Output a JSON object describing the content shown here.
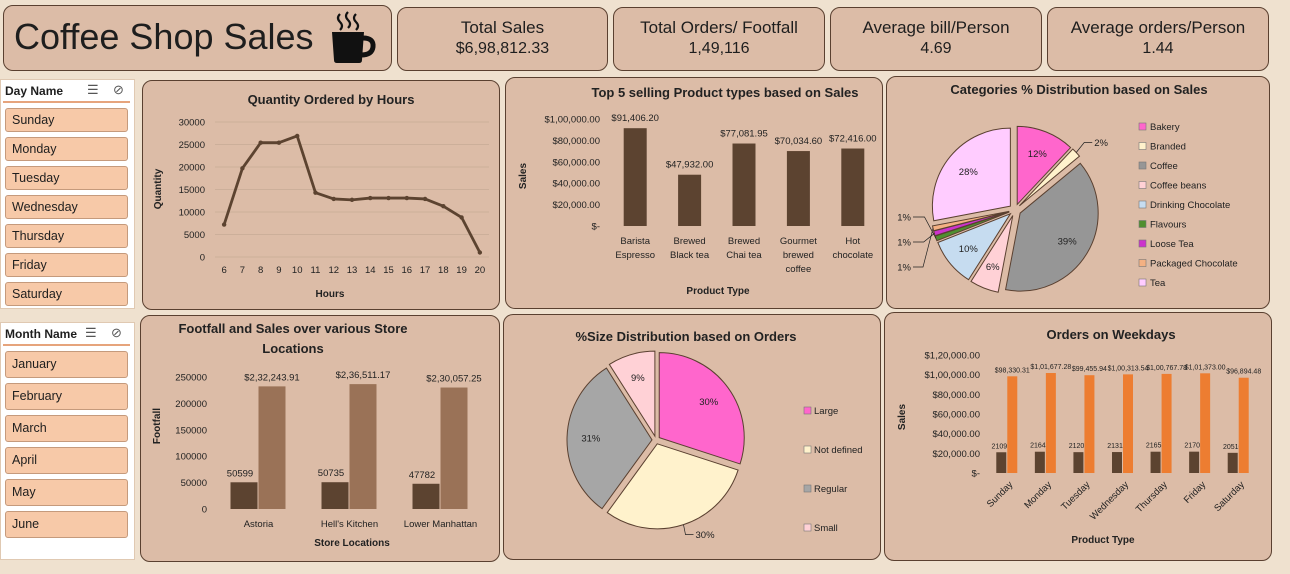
{
  "header": {
    "title": "Coffee Shop Sales",
    "icon": "coffee-cup-icon"
  },
  "kpis": [
    {
      "label": "Total Sales",
      "value": "$6,98,812.33"
    },
    {
      "label": "Total Orders/ Footfall",
      "value": "1,49,116"
    },
    {
      "label": "Average bill/Person",
      "value": "4.69"
    },
    {
      "label": "Average orders/Person",
      "value": "1.44"
    }
  ],
  "day_slicer": {
    "title": "Day Name",
    "items": [
      "Sunday",
      "Monday",
      "Tuesday",
      "Wednesday",
      "Thursday",
      "Friday",
      "Saturday"
    ]
  },
  "month_slicer": {
    "title": "Month Name",
    "items": [
      "January",
      "February",
      "March",
      "April",
      "May",
      "June"
    ]
  },
  "colors": {
    "card_bg": "#dcbca7",
    "border": "#5a4030",
    "dark_brown": "#5c4330",
    "light_brown": "#9a7257",
    "orange": "#ed7d31",
    "slicer_item": "#f7c9a8"
  },
  "chart_data": [
    {
      "id": "qty_hours",
      "type": "line",
      "title": "Quantity Ordered by Hours",
      "xlabel": "Hours",
      "ylabel": "Quantity",
      "ylim": [
        0,
        30000
      ],
      "yticks": [
        "0",
        "5000",
        "10000",
        "15000",
        "20000",
        "25000",
        "30000"
      ],
      "x": [
        6,
        7,
        8,
        9,
        10,
        11,
        12,
        13,
        14,
        15,
        16,
        17,
        18,
        19,
        20
      ],
      "y": [
        7200,
        19700,
        25400,
        25400,
        26900,
        14300,
        12900,
        12700,
        13100,
        13100,
        13100,
        12900,
        11300,
        8800,
        1000
      ],
      "grid": true
    },
    {
      "id": "top5",
      "type": "bar",
      "title": "Top 5 selling Product types based on Sales",
      "xlabel": "Product Type",
      "ylabel": "Sales",
      "ylim": [
        0,
        100000
      ],
      "yticks": [
        "$-",
        "$20,000.00",
        "$40,000.00",
        "$60,000.00",
        "$80,000.00",
        "$1,00,000.00"
      ],
      "categories": [
        "Barista Espresso",
        "Brewed Black tea",
        "Brewed Chai tea",
        "Gourmet brewed coffee",
        "Hot chocolate"
      ],
      "category_lines": [
        [
          "Barista",
          "Espresso"
        ],
        [
          "Brewed",
          "Black tea"
        ],
        [
          "Brewed",
          "Chai tea"
        ],
        [
          "Gourmet",
          "brewed",
          "coffee"
        ],
        [
          "Hot",
          "chocolate"
        ]
      ],
      "values": [
        91406.2,
        47932.0,
        77081.95,
        70034.6,
        72416.0
      ],
      "labels": [
        "$91,406.20",
        "$47,932.00",
        "$77,081.95",
        "$70,034.60",
        "$72,416.00"
      ]
    },
    {
      "id": "categories",
      "type": "pie",
      "title": "Categories % Distribution based on Sales",
      "legend_position": "right",
      "slices": [
        {
          "name": "Bakery",
          "pct": 12,
          "label": "12%",
          "color": "#ff66cc"
        },
        {
          "name": "Branded",
          "pct": 2,
          "label": "2%",
          "color": "#fff2cc"
        },
        {
          "name": "Coffee",
          "pct": 39,
          "label": "39%",
          "color": "#969696"
        },
        {
          "name": "Coffee beans",
          "pct": 6,
          "label": "6%",
          "color": "#ffd1d6"
        },
        {
          "name": "Drinking Chocolate",
          "pct": 10,
          "label": "10%",
          "color": "#c6dcf0"
        },
        {
          "name": "Flavours",
          "pct": 1,
          "label": "1%",
          "color": "#4f8f2f"
        },
        {
          "name": "Loose Tea",
          "pct": 1,
          "label": "1%",
          "color": "#cc33cc"
        },
        {
          "name": "Packaged Chocolate",
          "pct": 1,
          "label": "1%",
          "color": "#f4b183"
        },
        {
          "name": "Tea",
          "pct": 28,
          "label": "28%",
          "color": "#ffccff"
        }
      ]
    },
    {
      "id": "footfall",
      "type": "bar",
      "title": "Footfall and Sales over various Store Locations",
      "title_lines": [
        "Footfall and Sales over various Store",
        "Locations"
      ],
      "xlabel": "Store Locations",
      "ylabel": "Footfall",
      "ylim": [
        0,
        250000
      ],
      "yticks": [
        "0",
        "50000",
        "100000",
        "150000",
        "200000",
        "250000"
      ],
      "categories": [
        "Astoria",
        "Hell's Kitchen",
        "Lower Manhattan"
      ],
      "series": [
        {
          "values": [
            50599,
            50735,
            47782
          ],
          "labels": [
            "50599",
            "50735",
            "47782"
          ],
          "color": "#5c4330"
        },
        {
          "values": [
            232243.91,
            236511.17,
            230057.25
          ],
          "labels": [
            "$2,32,243.91",
            "$2,36,511.17",
            "$2,30,057.25"
          ],
          "color": "#9a7257"
        }
      ]
    },
    {
      "id": "size",
      "type": "pie",
      "title": "%Size Distribution based on Orders",
      "legend_position": "right",
      "slices": [
        {
          "name": "Large",
          "pct": 30,
          "label": "30%",
          "color": "#ff66cc"
        },
        {
          "name": "Not defined",
          "pct": 30,
          "label": "30%",
          "color": "#fff2cc"
        },
        {
          "name": "Regular",
          "pct": 31,
          "label": "31%",
          "color": "#a6a6a6"
        },
        {
          "name": "Small",
          "pct": 9,
          "label": "9%",
          "color": "#ffd1d6"
        }
      ]
    },
    {
      "id": "weekdays",
      "type": "bar",
      "title": "Orders on Weekdays",
      "xlabel": "Product Type",
      "ylabel": "Sales",
      "ylim": [
        0,
        120000
      ],
      "yticks": [
        "$-",
        "$20,000.00",
        "$40,000.00",
        "$60,000.00",
        "$80,000.00",
        "$1,00,000.00",
        "$1,20,000.00"
      ],
      "categories": [
        "Sunday",
        "Monday",
        "Tuesday",
        "Wednesday",
        "Thursday",
        "Friday",
        "Saturday"
      ],
      "series": [
        {
          "values": [
            21096,
            21643,
            21202,
            21310,
            21654,
            21701,
            20510
          ],
          "labels": [
            "21096",
            "21643",
            "21202",
            "21310",
            "21654",
            "21701",
            "20510"
          ],
          "color": "#5c4330"
        },
        {
          "values": [
            98330.31,
            101677.28,
            99455.94,
            100313.54,
            100767.78,
            101373.0,
            96894.48
          ],
          "labels": [
            "$98,330.31",
            "$1,01,677.28",
            "$99,455.94",
            "$1,00,313.54",
            "$1,00,767.78",
            "$1,01,373.00",
            "$96,894.48"
          ],
          "color": "#ed7d31"
        }
      ]
    }
  ]
}
